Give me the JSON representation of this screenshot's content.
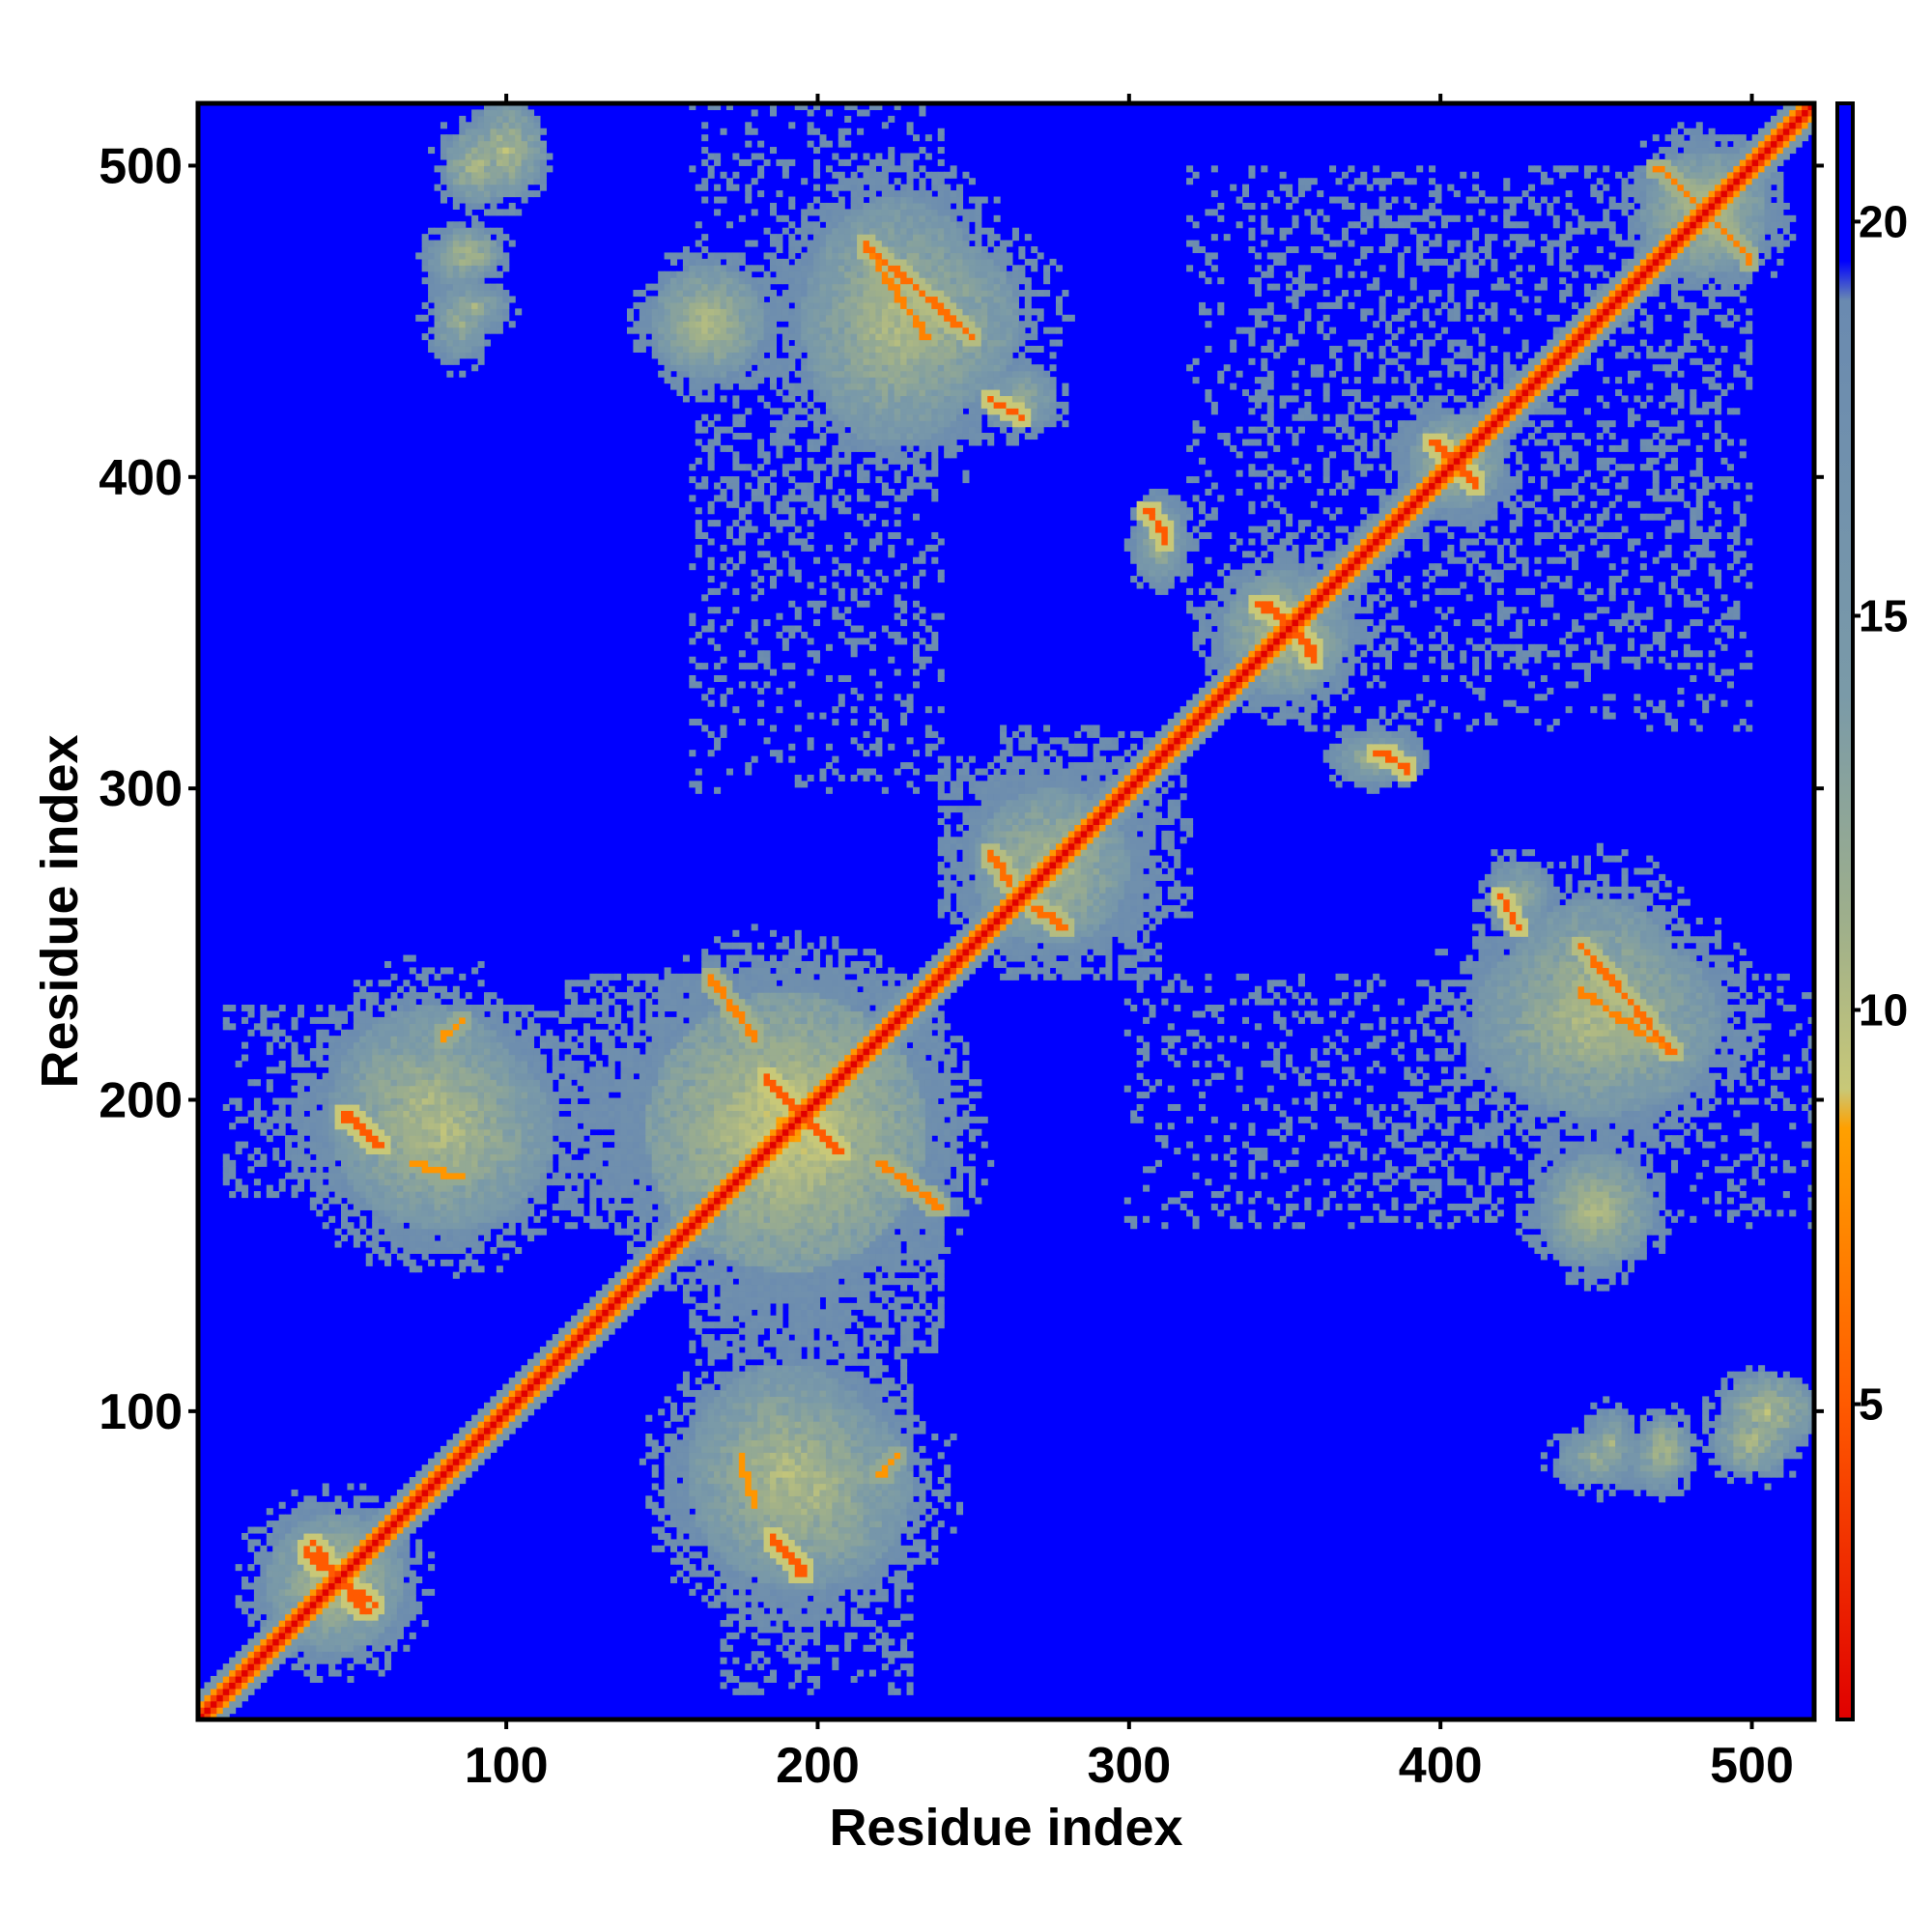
{
  "chart_data": {
    "type": "heatmap",
    "title": "",
    "xlabel": "Residue index",
    "ylabel": "Residue index",
    "xlim": [
      1,
      520
    ],
    "ylim": [
      1,
      520
    ],
    "x_ticks": [
      100,
      200,
      300,
      400,
      500
    ],
    "y_ticks": [
      100,
      200,
      300,
      400,
      500
    ],
    "colorbar": {
      "range": [
        1,
        21.5
      ],
      "ticks": [
        5,
        10,
        15,
        20
      ],
      "stops": [
        {
          "value": 1,
          "color": "#e00000"
        },
        {
          "value": 5,
          "color": "#ff5a00"
        },
        {
          "value": 8.5,
          "color": "#ffa000"
        },
        {
          "value": 9,
          "color": "#c8c878"
        },
        {
          "value": 11,
          "color": "#a0b08a"
        },
        {
          "value": 14,
          "color": "#7a9aa8"
        },
        {
          "value": 19,
          "color": "#6a8ab0"
        },
        {
          "value": 19.5,
          "color": "#0000ff"
        },
        {
          "value": 21.5,
          "color": "#0000ff"
        }
      ]
    },
    "symmetric": true,
    "background_value": 21,
    "diagonal": {
      "width": 4,
      "core_value": 1,
      "halo_value": 15
    },
    "contact_regions": [
      {
        "x": 45,
        "y": 45,
        "rx": 22,
        "ry": 22,
        "value": 14
      },
      {
        "x": 100,
        "y": 505,
        "rx": 12,
        "ry": 15,
        "value": 14
      },
      {
        "x": 88,
        "y": 472,
        "rx": 10,
        "ry": 8,
        "value": 14
      },
      {
        "x": 90,
        "y": 455,
        "rx": 10,
        "ry": 7,
        "value": 15
      },
      {
        "x": 165,
        "y": 450,
        "rx": 18,
        "ry": 18,
        "value": 14
      },
      {
        "x": 230,
        "y": 450,
        "rx": 35,
        "ry": 30,
        "value": 14
      },
      {
        "x": 265,
        "y": 425,
        "rx": 12,
        "ry": 10,
        "value": 15
      },
      {
        "x": 310,
        "y": 378,
        "rx": 8,
        "ry": 12,
        "value": 15
      },
      {
        "x": 380,
        "y": 310,
        "rx": 12,
        "ry": 8,
        "value": 15
      },
      {
        "x": 80,
        "y": 190,
        "rx": 35,
        "ry": 32,
        "value": 14
      },
      {
        "x": 190,
        "y": 190,
        "rx": 45,
        "ry": 45,
        "value": 13
      },
      {
        "x": 275,
        "y": 275,
        "rx": 25,
        "ry": 25,
        "value": 14
      },
      {
        "x": 350,
        "y": 350,
        "rx": 20,
        "ry": 20,
        "value": 14
      },
      {
        "x": 405,
        "y": 405,
        "rx": 15,
        "ry": 15,
        "value": 14
      },
      {
        "x": 485,
        "y": 485,
        "rx": 20,
        "ry": 20,
        "value": 14
      },
      {
        "x": 195,
        "y": 75,
        "rx": 35,
        "ry": 32,
        "value": 14
      },
      {
        "x": 450,
        "y": 225,
        "rx": 40,
        "ry": 30,
        "value": 14
      },
      {
        "x": 450,
        "y": 165,
        "rx": 15,
        "ry": 18,
        "value": 14
      },
      {
        "x": 450,
        "y": 85,
        "rx": 12,
        "ry": 9,
        "value": 15
      },
      {
        "x": 470,
        "y": 85,
        "rx": 9,
        "ry": 10,
        "value": 15
      },
      {
        "x": 500,
        "y": 90,
        "rx": 12,
        "ry": 10,
        "value": 14
      }
    ],
    "contact_lines": [
      {
        "x1": 38,
        "y1": 58,
        "x2": 55,
        "y2": 35,
        "value": 5
      },
      {
        "x1": 48,
        "y1": 195,
        "x2": 58,
        "y2": 188,
        "value": 5
      },
      {
        "x1": 70,
        "y1": 180,
        "x2": 85,
        "y2": 175,
        "value": 8
      },
      {
        "x1": 80,
        "y1": 220,
        "x2": 85,
        "y2": 225,
        "value": 8
      },
      {
        "x1": 185,
        "y1": 205,
        "x2": 208,
        "y2": 183,
        "value": 5
      },
      {
        "x1": 220,
        "y1": 180,
        "x2": 240,
        "y2": 165,
        "value": 7
      },
      {
        "x1": 185,
        "y1": 60,
        "x2": 195,
        "y2": 50,
        "value": 5
      },
      {
        "x1": 215,
        "y1": 475,
        "x2": 250,
        "y2": 445,
        "value": 6
      },
      {
        "x1": 255,
        "y1": 425,
        "x2": 265,
        "y2": 420,
        "value": 5
      },
      {
        "x1": 420,
        "y1": 265,
        "x2": 425,
        "y2": 255,
        "value": 5
      },
      {
        "x1": 445,
        "y1": 235,
        "x2": 475,
        "y2": 215,
        "value": 7
      },
      {
        "x1": 345,
        "y1": 360,
        "x2": 360,
        "y2": 342,
        "value": 5
      },
      {
        "x1": 398,
        "y1": 412,
        "x2": 412,
        "y2": 398,
        "value": 5
      },
      {
        "x1": 470,
        "y1": 500,
        "x2": 500,
        "y2": 470,
        "value": 7
      },
      {
        "x1": 255,
        "y1": 280,
        "x2": 262,
        "y2": 270,
        "value": 6
      },
      {
        "x1": 305,
        "y1": 390,
        "x2": 312,
        "y2": 382,
        "value": 5
      },
      {
        "x1": 380,
        "y1": 312,
        "x2": 390,
        "y2": 306,
        "value": 5
      }
    ],
    "speckle_columns": [
      {
        "from": 160,
        "to": 240,
        "y_from": 120,
        "y_to": 240,
        "density": 0.45
      },
      {
        "from": 260,
        "to": 310,
        "y_from": 240,
        "y_to": 320,
        "density": 0.45
      },
      {
        "from": 340,
        "to": 500,
        "y_from": 320,
        "y_to": 500,
        "density": 0.15
      },
      {
        "from": 300,
        "to": 520,
        "y_from": 160,
        "y_to": 240,
        "density": 0.18
      },
      {
        "from": 10,
        "to": 140,
        "y_from": 170,
        "y_to": 230,
        "density": 0.3
      },
      {
        "from": 380,
        "to": 420,
        "y_from": 160,
        "y_to": 200,
        "density": 0.25
      }
    ]
  }
}
